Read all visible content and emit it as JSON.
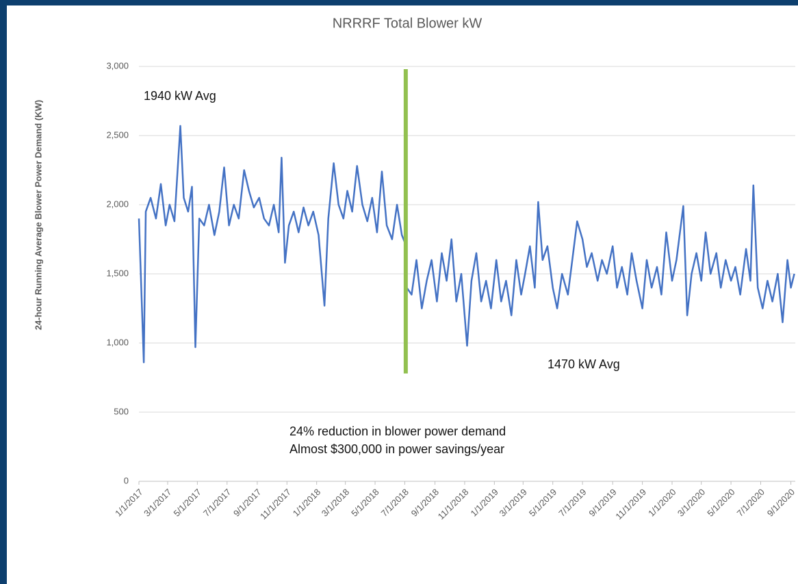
{
  "chart_data": {
    "type": "line",
    "title": "NRRRF Total Blower kW",
    "y_label": "24-hour Running Average Blower Power Demand (KW)",
    "annotations": [
      "1940 kW Avg",
      "1470 kW Avg",
      "24% reduction in blower power demand",
      "Almost $300,000 in power savings/year"
    ],
    "xlim": [
      "1/1/2017",
      "9/10/2020"
    ],
    "xticks": [
      "1/1/2017",
      "3/1/2017",
      "5/1/2017",
      "7/1/2017",
      "9/1/2017",
      "11/1/2017",
      "1/1/2018",
      "3/1/2018",
      "5/1/2018",
      "7/1/2018",
      "9/1/2018",
      "11/1/2018",
      "1/1/2019",
      "3/1/2019",
      "5/1/2019",
      "7/1/2019",
      "9/1/2019",
      "11/1/2019",
      "1/1/2020",
      "3/1/2020",
      "5/1/2020",
      "7/1/2020",
      "9/1/2020"
    ],
    "ylim": [
      0,
      3000
    ],
    "yticks": [
      0,
      500,
      {
        "value": 1000,
        "label": "1,000"
      },
      {
        "value": 1500,
        "label": "1,500"
      },
      {
        "value": 2000,
        "label": "2,000"
      },
      {
        "value": 2500,
        "label": "2,500"
      },
      {
        "value": 3000,
        "label": "3,000"
      }
    ],
    "grid": true,
    "divider": {
      "x": "7/3/2018",
      "y": [
        780,
        2980
      ],
      "color": "#92c050"
    },
    "x": [
      "1/1/2017",
      "1/11/2017",
      "1/15/2017",
      "1/25/2017",
      "2/5/2017",
      "2/15/2017",
      "2/25/2017",
      "3/5/2017",
      "3/15/2017",
      "3/27/2017",
      "4/3/2017",
      "4/12/2017",
      "4/20/2017",
      "4/27/2017",
      "5/5/2017",
      "5/15/2017",
      "5/25/2017",
      "6/5/2017",
      "6/15/2017",
      "6/25/2017",
      "7/5/2017",
      "7/15/2017",
      "7/25/2017",
      "8/5/2017",
      "8/15/2017",
      "8/25/2017",
      "9/5/2017",
      "9/15/2017",
      "9/25/2017",
      "10/5/2017",
      "10/15/2017",
      "10/21/2017",
      "10/28/2017",
      "11/5/2017",
      "11/15/2017",
      "11/25/2017",
      "12/5/2017",
      "12/15/2017",
      "12/25/2017",
      "1/5/2018",
      "1/17/2018",
      "1/25/2018",
      "2/5/2018",
      "2/15/2018",
      "2/25/2018",
      "3/5/2018",
      "3/15/2018",
      "3/25/2018",
      "4/5/2018",
      "4/15/2018",
      "4/25/2018",
      "5/5/2018",
      "5/15/2018",
      "5/25/2018",
      "6/5/2018",
      "6/15/2018",
      "6/25/2018",
      "7/2/2018",
      "7/5/2018",
      "7/15/2018",
      "7/25/2018",
      "8/5/2018",
      "8/15/2018",
      "8/25/2018",
      "9/5/2018",
      "9/15/2018",
      "9/25/2018",
      "10/5/2018",
      "10/15/2018",
      "10/25/2018",
      "11/6/2018",
      "11/15/2018",
      "11/25/2018",
      "12/5/2018",
      "12/15/2018",
      "12/25/2018",
      "1/5/2019",
      "1/15/2019",
      "1/25/2019",
      "2/5/2019",
      "2/15/2019",
      "2/25/2019",
      "3/5/2019",
      "3/15/2019",
      "3/25/2019",
      "4/1/2019",
      "4/10/2019",
      "4/20/2019",
      "5/1/2019",
      "5/10/2019",
      "5/20/2019",
      "6/1/2019",
      "6/10/2019",
      "6/20/2019",
      "7/1/2019",
      "7/10/2019",
      "7/20/2019",
      "8/1/2019",
      "8/10/2019",
      "8/20/2019",
      "9/1/2019",
      "9/10/2019",
      "9/20/2019",
      "10/1/2019",
      "10/10/2019",
      "10/20/2019",
      "11/1/2019",
      "11/10/2019",
      "11/20/2019",
      "12/1/2019",
      "12/10/2019",
      "12/20/2019",
      "1/1/2020",
      "1/10/2020",
      "1/24/2020",
      "2/1/2020",
      "2/10/2020",
      "2/20/2020",
      "3/1/2020",
      "3/10/2020",
      "3/20/2020",
      "4/1/2020",
      "4/10/2020",
      "4/20/2020",
      "5/1/2020",
      "5/10/2020",
      "5/20/2020",
      "6/1/2020",
      "6/10/2020",
      "6/16/2020",
      "6/25/2020",
      "7/5/2020",
      "7/15/2020",
      "7/25/2020",
      "8/5/2020",
      "8/15/2020",
      "8/25/2020",
      "9/1/2020",
      "9/8/2020"
    ],
    "series": [
      {
        "name": "Total Blower kW",
        "color": "#4472c4",
        "values": [
          1900,
          860,
          1950,
          2050,
          1900,
          2150,
          1850,
          2000,
          1880,
          2570,
          2050,
          1950,
          2130,
          970,
          1900,
          1850,
          2000,
          1780,
          1950,
          2270,
          1850,
          2000,
          1900,
          2250,
          2100,
          1980,
          2050,
          1900,
          1850,
          2000,
          1800,
          2340,
          1580,
          1850,
          1950,
          1800,
          1980,
          1850,
          1950,
          1780,
          1270,
          1900,
          2300,
          2000,
          1900,
          2100,
          1950,
          2280,
          2000,
          1880,
          2050,
          1800,
          2240,
          1850,
          1750,
          2000,
          1780,
          1720,
          1400,
          1350,
          1600,
          1250,
          1450,
          1600,
          1300,
          1650,
          1450,
          1750,
          1300,
          1500,
          980,
          1450,
          1650,
          1300,
          1450,
          1250,
          1600,
          1300,
          1450,
          1200,
          1600,
          1350,
          1500,
          1700,
          1400,
          2020,
          1600,
          1700,
          1400,
          1250,
          1500,
          1350,
          1600,
          1880,
          1750,
          1550,
          1650,
          1450,
          1600,
          1500,
          1700,
          1400,
          1550,
          1350,
          1650,
          1450,
          1250,
          1600,
          1400,
          1550,
          1350,
          1800,
          1450,
          1600,
          1990,
          1200,
          1500,
          1650,
          1450,
          1800,
          1500,
          1650,
          1400,
          1600,
          1450,
          1550,
          1350,
          1680,
          1450,
          2140,
          1400,
          1250,
          1450,
          1300,
          1500,
          1150,
          1600,
          1400,
          1500
        ]
      }
    ]
  }
}
